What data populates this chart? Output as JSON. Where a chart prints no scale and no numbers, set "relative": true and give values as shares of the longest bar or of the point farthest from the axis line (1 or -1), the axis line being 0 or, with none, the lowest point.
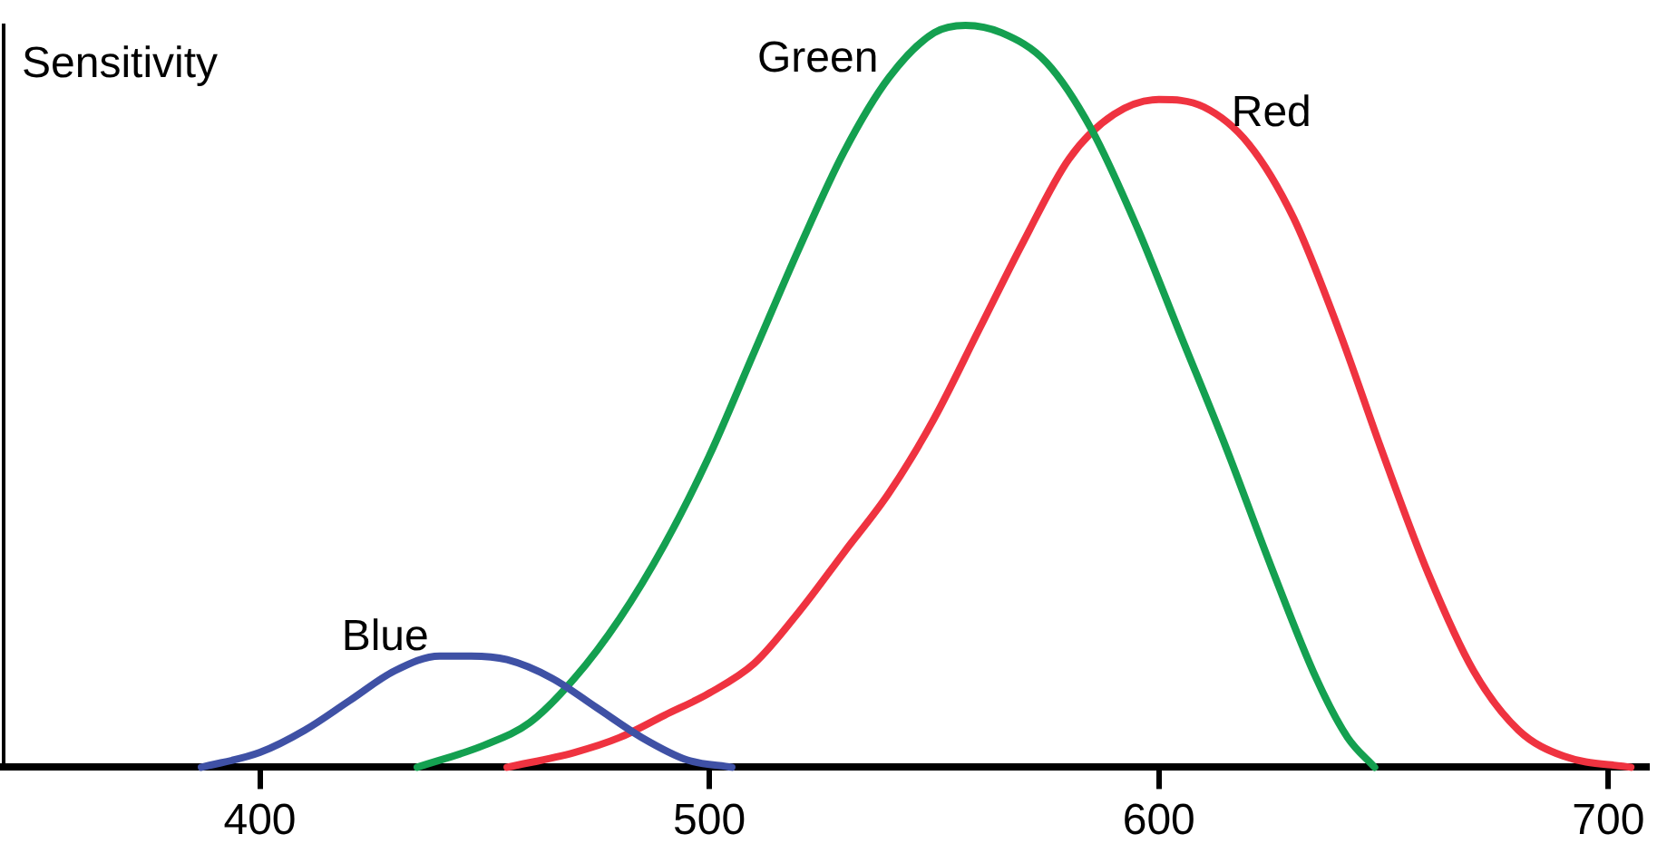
{
  "chart_data": {
    "type": "line",
    "ylabel": "Sensitivity",
    "relative": true,
    "xlim": [
      343,
      709
    ],
    "xticks": [
      400,
      500,
      600,
      700
    ],
    "legend": false,
    "grid": false,
    "marker": "none",
    "line_style": "solid",
    "series": [
      {
        "name": "Blue",
        "color": "#3f51a5",
        "x": [
          387,
          400,
          410,
          420,
          430,
          440,
          447,
          455,
          465,
          475,
          485,
          495,
          505
        ],
        "values": [
          0,
          0.02,
          0.05,
          0.09,
          0.13,
          0.15,
          0.15,
          0.145,
          0.12,
          0.08,
          0.04,
          0.01,
          0
        ]
      },
      {
        "name": "Green",
        "color": "#14a050",
        "x": [
          435,
          450,
          460,
          470,
          480,
          490,
          500,
          510,
          520,
          530,
          540,
          550,
          557,
          565,
          575,
          585,
          595,
          605,
          615,
          625,
          635,
          642,
          648
        ],
        "values": [
          0,
          0.03,
          0.06,
          0.12,
          0.2,
          0.3,
          0.42,
          0.56,
          0.7,
          0.83,
          0.93,
          0.99,
          1,
          0.99,
          0.95,
          0.86,
          0.73,
          0.58,
          0.43,
          0.27,
          0.12,
          0.04,
          0
        ]
      },
      {
        "name": "Red",
        "color": "#ef3340",
        "x": [
          455,
          470,
          480,
          490,
          500,
          510,
          520,
          530,
          540,
          550,
          560,
          570,
          580,
          590,
          600,
          610,
          620,
          630,
          640,
          650,
          660,
          670,
          680,
          690,
          705
        ],
        "values": [
          0,
          0.02,
          0.04,
          0.07,
          0.1,
          0.14,
          0.21,
          0.29,
          0.37,
          0.47,
          0.59,
          0.71,
          0.82,
          0.88,
          0.9,
          0.89,
          0.84,
          0.74,
          0.59,
          0.42,
          0.26,
          0.13,
          0.05,
          0.015,
          0
        ]
      }
    ]
  }
}
